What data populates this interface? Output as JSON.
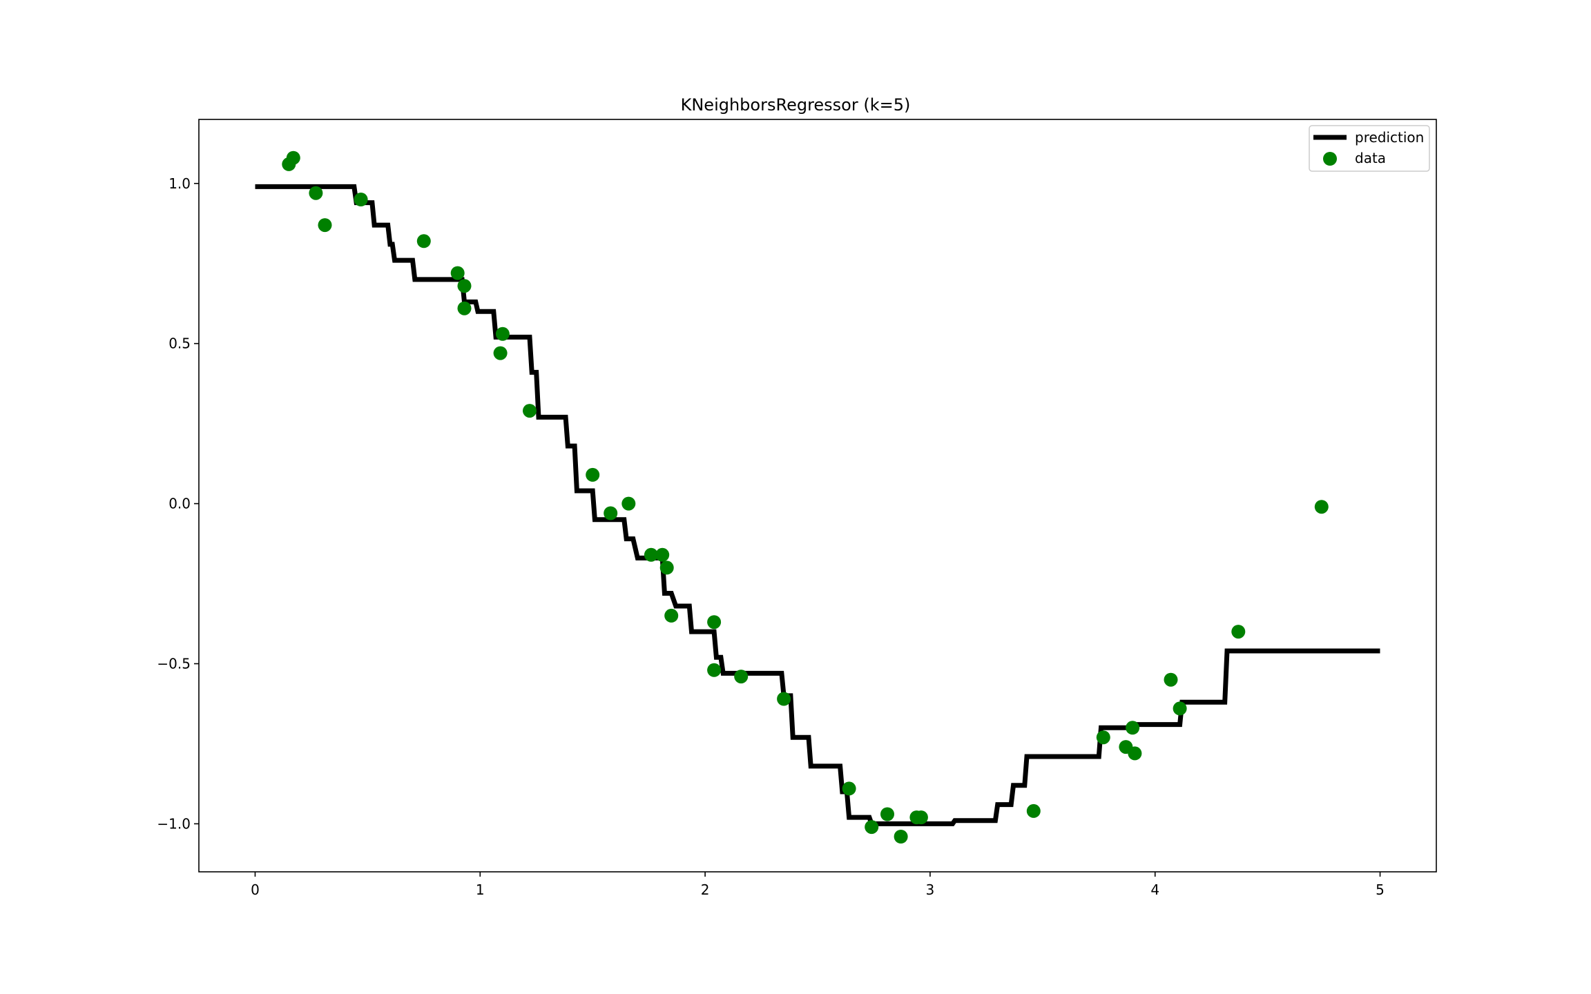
{
  "chart_data": {
    "type": "line",
    "title": "KNeighborsRegressor (k=5)",
    "xlabel": "",
    "ylabel": "",
    "xlim": [
      -0.25,
      5.25
    ],
    "ylim": [
      -1.15,
      1.2
    ],
    "xticks": [
      0,
      1,
      2,
      3,
      4,
      5
    ],
    "xtick_labels": [
      "0",
      "1",
      "2",
      "3",
      "4",
      "5"
    ],
    "yticks": [
      1.0,
      0.5,
      0.0,
      -0.5,
      -1.0
    ],
    "ytick_labels": [
      "1.0",
      "0.5",
      "0.0",
      "−0.5",
      "−1.0"
    ],
    "grid": false,
    "legend": {
      "location": "upper right"
    },
    "series": [
      {
        "name": "prediction",
        "kind": "line",
        "color": "#000000",
        "points": [
          [
            0,
            0.99
          ],
          [
            0.44,
            0.99
          ],
          [
            0.45,
            0.94
          ],
          [
            0.52,
            0.94
          ],
          [
            0.53,
            0.87
          ],
          [
            0.59,
            0.87
          ],
          [
            0.6,
            0.81
          ],
          [
            0.61,
            0.81
          ],
          [
            0.62,
            0.76
          ],
          [
            0.7,
            0.76
          ],
          [
            0.71,
            0.7
          ],
          [
            0.92,
            0.7
          ],
          [
            0.93,
            0.63
          ],
          [
            0.98,
            0.63
          ],
          [
            0.99,
            0.6
          ],
          [
            1.06,
            0.6
          ],
          [
            1.07,
            0.52
          ],
          [
            1.22,
            0.52
          ],
          [
            1.23,
            0.41
          ],
          [
            1.25,
            0.41
          ],
          [
            1.26,
            0.27
          ],
          [
            1.38,
            0.27
          ],
          [
            1.39,
            0.18
          ],
          [
            1.42,
            0.18
          ],
          [
            1.43,
            0.04
          ],
          [
            1.5,
            0.04
          ],
          [
            1.51,
            -0.05
          ],
          [
            1.64,
            -0.05
          ],
          [
            1.65,
            -0.11
          ],
          [
            1.68,
            -0.11
          ],
          [
            1.7,
            -0.17
          ],
          [
            1.81,
            -0.17
          ],
          [
            1.82,
            -0.28
          ],
          [
            1.85,
            -0.28
          ],
          [
            1.87,
            -0.32
          ],
          [
            1.93,
            -0.32
          ],
          [
            1.94,
            -0.4
          ],
          [
            2.04,
            -0.4
          ],
          [
            2.05,
            -0.48
          ],
          [
            2.07,
            -0.48
          ],
          [
            2.08,
            -0.53
          ],
          [
            2.34,
            -0.53
          ],
          [
            2.35,
            -0.6
          ],
          [
            2.38,
            -0.6
          ],
          [
            2.39,
            -0.73
          ],
          [
            2.46,
            -0.73
          ],
          [
            2.47,
            -0.82
          ],
          [
            2.6,
            -0.82
          ],
          [
            2.61,
            -0.9
          ],
          [
            2.63,
            -0.9
          ],
          [
            2.64,
            -0.98
          ],
          [
            2.73,
            -0.98
          ],
          [
            2.74,
            -1.0
          ],
          [
            3.1,
            -1.0
          ],
          [
            3.11,
            -0.99
          ],
          [
            3.29,
            -0.99
          ],
          [
            3.3,
            -0.94
          ],
          [
            3.36,
            -0.94
          ],
          [
            3.37,
            -0.88
          ],
          [
            3.42,
            -0.88
          ],
          [
            3.43,
            -0.79
          ],
          [
            3.75,
            -0.79
          ],
          [
            3.76,
            -0.7
          ],
          [
            3.88,
            -0.7
          ],
          [
            3.89,
            -0.69
          ],
          [
            4.11,
            -0.69
          ],
          [
            4.12,
            -0.62
          ],
          [
            4.31,
            -0.62
          ],
          [
            4.32,
            -0.46
          ],
          [
            5.0,
            -0.46
          ]
        ]
      },
      {
        "name": "data",
        "kind": "scatter",
        "color": "#008000",
        "points": [
          [
            0.15,
            1.06
          ],
          [
            0.17,
            1.08
          ],
          [
            0.27,
            0.97
          ],
          [
            0.31,
            0.87
          ],
          [
            0.47,
            0.95
          ],
          [
            0.75,
            0.82
          ],
          [
            0.9,
            0.72
          ],
          [
            0.93,
            0.68
          ],
          [
            0.93,
            0.61
          ],
          [
            1.09,
            0.47
          ],
          [
            1.1,
            0.53
          ],
          [
            1.22,
            0.29
          ],
          [
            1.5,
            0.09
          ],
          [
            1.58,
            -0.03
          ],
          [
            1.66,
            0.0
          ],
          [
            1.76,
            -0.16
          ],
          [
            1.81,
            -0.16
          ],
          [
            1.83,
            -0.2
          ],
          [
            1.85,
            -0.35
          ],
          [
            2.04,
            -0.37
          ],
          [
            2.04,
            -0.52
          ],
          [
            2.16,
            -0.54
          ],
          [
            2.35,
            -0.61
          ],
          [
            2.64,
            -0.89
          ],
          [
            2.74,
            -1.01
          ],
          [
            2.81,
            -0.97
          ],
          [
            2.87,
            -1.04
          ],
          [
            2.94,
            -0.98
          ],
          [
            2.96,
            -0.98
          ],
          [
            3.46,
            -0.96
          ],
          [
            3.77,
            -0.73
          ],
          [
            3.87,
            -0.76
          ],
          [
            3.9,
            -0.7
          ],
          [
            3.91,
            -0.78
          ],
          [
            4.07,
            -0.55
          ],
          [
            4.11,
            -0.64
          ],
          [
            4.37,
            -0.4
          ],
          [
            4.74,
            -0.01
          ]
        ]
      }
    ]
  }
}
